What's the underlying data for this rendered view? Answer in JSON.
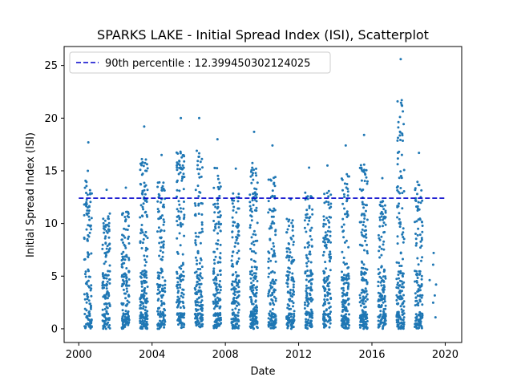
{
  "chart_data": {
    "type": "scatter",
    "title": "SPARKS LAKE - Initial Spread Index (ISI), Scatterplot",
    "xlabel": "Date",
    "ylabel": "Initial Spread Index (ISI)",
    "xlim": [
      1999.2,
      2020.9
    ],
    "ylim": [
      -1.3,
      26.8
    ],
    "x_ticks": [
      2000,
      2004,
      2008,
      2012,
      2016,
      2020
    ],
    "y_ticks": [
      0,
      5,
      10,
      15,
      20,
      25
    ],
    "grid": false,
    "legend_position": "top-left",
    "colors": {
      "points": "#1f77b4",
      "percentile_line": "#0000cc"
    },
    "percentile_line": {
      "label": "90th percentile : 12.399450302124025",
      "value": 12.399450302124025,
      "x_start": 2000.0,
      "x_end": 2020.0
    },
    "seasons": [
      {
        "center": 2000.5,
        "count": 120,
        "max": 17.7
      },
      {
        "center": 2001.5,
        "count": 140,
        "max": 13.2
      },
      {
        "center": 2002.55,
        "count": 150,
        "max": 13.4
      },
      {
        "center": 2003.55,
        "count": 200,
        "max": 19.2
      },
      {
        "center": 2004.5,
        "count": 150,
        "max": 16.5
      },
      {
        "center": 2005.55,
        "count": 160,
        "max": 20.0
      },
      {
        "center": 2006.55,
        "count": 160,
        "max": 20.0
      },
      {
        "center": 2007.55,
        "count": 160,
        "max": 18.0
      },
      {
        "center": 2008.55,
        "count": 150,
        "max": 15.2
      },
      {
        "center": 2009.55,
        "count": 180,
        "max": 18.7
      },
      {
        "center": 2010.55,
        "count": 150,
        "max": 17.4
      },
      {
        "center": 2011.55,
        "count": 140,
        "max": 12.3
      },
      {
        "center": 2012.55,
        "count": 160,
        "max": 15.3
      },
      {
        "center": 2013.55,
        "count": 150,
        "max": 15.5
      },
      {
        "center": 2014.55,
        "count": 170,
        "max": 17.4
      },
      {
        "center": 2015.55,
        "count": 180,
        "max": 18.4
      },
      {
        "center": 2016.55,
        "count": 150,
        "max": 14.3
      },
      {
        "center": 2017.55,
        "count": 170,
        "max": 25.6
      },
      {
        "center": 2018.55,
        "count": 140,
        "max": 16.7
      },
      {
        "center": 2019.35,
        "count": 6,
        "max": 7.2
      }
    ]
  }
}
